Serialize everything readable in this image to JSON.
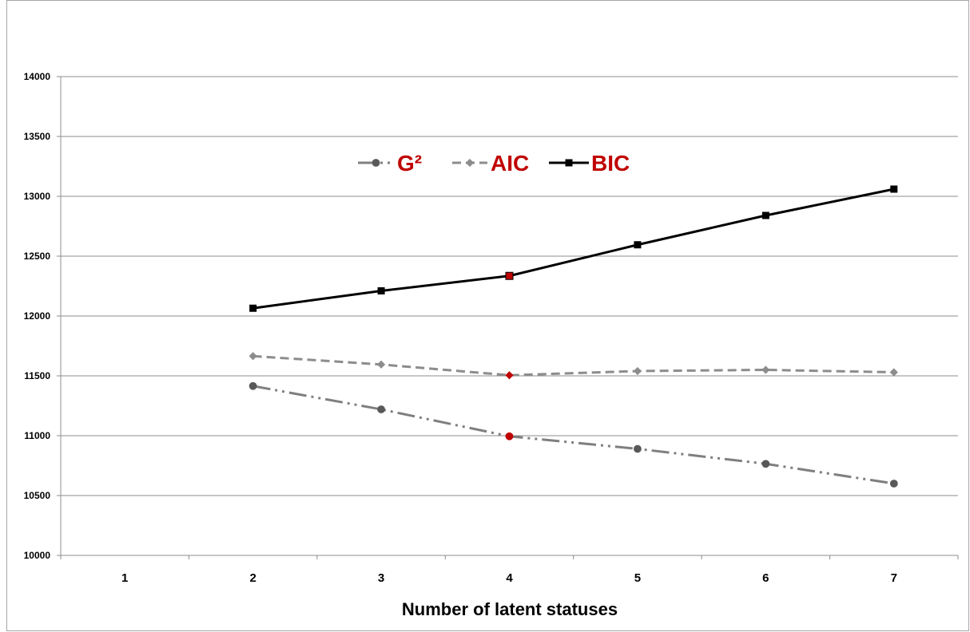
{
  "chart_data": {
    "type": "line",
    "xlabel": "Number of latent statuses",
    "ylabel": "",
    "title": "",
    "categories": [
      "1",
      "2",
      "3",
      "4",
      "5",
      "6",
      "7"
    ],
    "ylim": [
      10000,
      14000
    ],
    "yticks": [
      10000,
      10500,
      11000,
      11500,
      12000,
      12500,
      13000,
      13500,
      14000
    ],
    "grid": "horizontal",
    "legend_position": "top-center",
    "legend_color": "#c00000",
    "series": [
      {
        "name": "G²",
        "style": "dash-dot-dot",
        "marker": "circle",
        "color": "#7f7f7f",
        "x": [
          2,
          3,
          4,
          5,
          6,
          7
        ],
        "values": [
          11415,
          11220,
          10995,
          10890,
          10765,
          10600
        ],
        "highlight_index": 2,
        "highlight_color": "#c00000"
      },
      {
        "name": "AIC",
        "style": "dashed",
        "marker": "diamond",
        "color": "#8c8c8c",
        "x": [
          2,
          3,
          4,
          5,
          6,
          7
        ],
        "values": [
          11665,
          11595,
          11505,
          11540,
          11550,
          11530
        ],
        "highlight_index": 2,
        "highlight_color": "#c00000"
      },
      {
        "name": "BIC",
        "style": "solid",
        "marker": "square",
        "color": "#000000",
        "x": [
          2,
          3,
          4,
          5,
          6,
          7
        ],
        "values": [
          12065,
          12210,
          12335,
          12595,
          12840,
          13060
        ],
        "highlight_index": 2,
        "highlight_color": "#c00000"
      }
    ]
  }
}
